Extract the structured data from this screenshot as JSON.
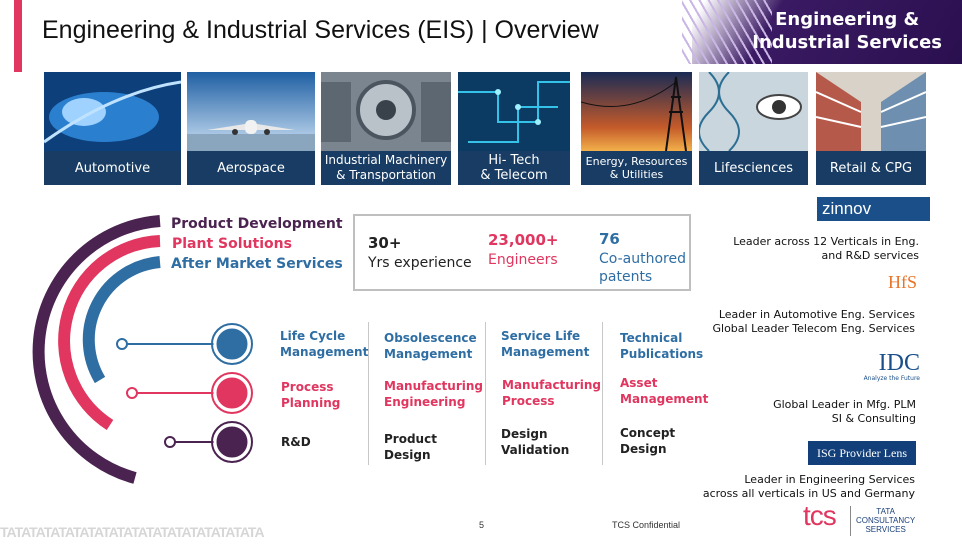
{
  "title": "Engineering & Industrial Services (EIS) | Overview",
  "brand": "Engineering &\nIndustrial Services",
  "industries": [
    {
      "label": "Automotive",
      "icon": "car-headlight-image"
    },
    {
      "label": "Aerospace",
      "icon": "airplane-image"
    },
    {
      "label": "Industrial Machinery\n& Transportation",
      "icon": "gear-machinery-image"
    },
    {
      "label": "Hi- Tech\n& Telecom",
      "icon": "circuit-image"
    },
    {
      "label": "Energy, Resources\n& Utilities",
      "icon": "power-tower-image"
    },
    {
      "label": "Lifesciences",
      "icon": "dna-eye-image"
    },
    {
      "label": "Retail & CPG",
      "icon": "store-aisle-image"
    }
  ],
  "services": {
    "product": "Product Development",
    "plant": "Plant Solutions",
    "after": "After Market Services"
  },
  "stats": [
    {
      "num": "30+",
      "label": "Yrs experience"
    },
    {
      "num": "23,000+",
      "label": "Engineers"
    },
    {
      "num": "76",
      "label": "Co-authored\npatents"
    }
  ],
  "grid": {
    "row1": [
      "Life Cycle\nManagement",
      "Obsolescence\nManagement",
      "Service Life\nManagement",
      "Technical\nPublications"
    ],
    "row2": [
      "Process\nPlanning",
      "Manufacturing\nEngineering",
      "Manufacturing\nProcess",
      "Asset\nManagement"
    ],
    "row3": [
      "R&D",
      "Product\nDesign",
      "Design\nValidation",
      "Concept\nDesign"
    ]
  },
  "recognition": [
    {
      "logo": "zinnov",
      "text": "Leader across 12 Verticals in Eng.\nand R&D services"
    },
    {
      "logo": "HfS",
      "text": "Leader in Automotive Eng. Services\nGlobal Leader Telecom Eng. Services"
    },
    {
      "logo": "IDC",
      "logo_sub": "Analyze the Future",
      "text": "Global Leader in  Mfg. PLM\nSI & Consulting"
    },
    {
      "logo": "ISG Provider Lens",
      "text": "Leader in Engineering Services\nacross all verticals in US and Germany"
    }
  ],
  "footer": {
    "page": "5",
    "confidential": "TCS Confidential",
    "tcs_logo": "tcs",
    "tcs_name": "TATA\nCONSULTANCY\nSERVICES",
    "pattern": "TATATATATATATATATATATATATATATATATATA"
  },
  "colors": {
    "purple": "#4a2350",
    "pink": "#e0365f",
    "blue": "#2f6ea3",
    "navy": "#183c63"
  }
}
